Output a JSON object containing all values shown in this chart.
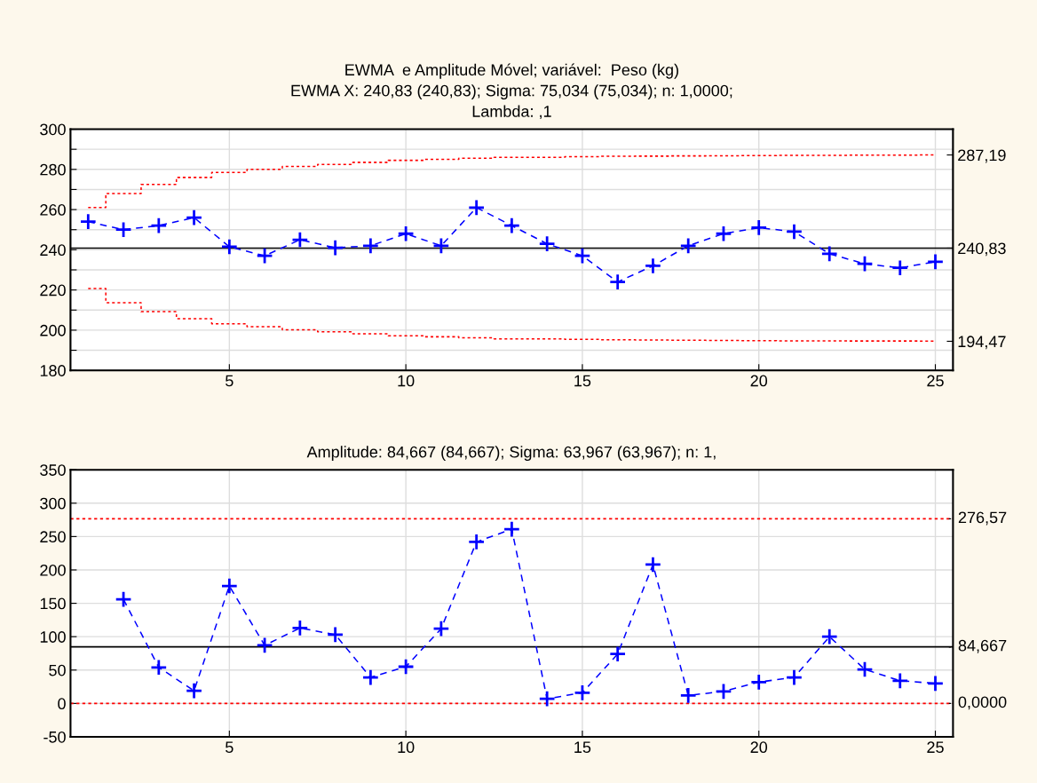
{
  "chart_data": [
    {
      "type": "line",
      "title": "EWMA  e Amplitude Móvel; variável:  Peso (kg)\nEWMA X: 240,83 (240,83); Sigma: 75,034 (75,034); n: 1,0000;\nLambda: ,1",
      "x": [
        1,
        2,
        3,
        4,
        5,
        6,
        7,
        8,
        9,
        10,
        11,
        12,
        13,
        14,
        15,
        16,
        17,
        18,
        19,
        20,
        21,
        22,
        23,
        24,
        25
      ],
      "series": [
        {
          "type": "step",
          "color": "#ff0000",
          "line_style": "dotted",
          "marker": "none",
          "values": [
            261,
            268,
            272.5,
            276,
            278.5,
            280,
            281.5,
            282.5,
            283.5,
            284.5,
            285,
            285.5,
            286,
            286,
            286.3,
            286.5,
            286.6,
            286.7,
            286.8,
            286.9,
            287,
            287,
            287.1,
            287.1,
            287.2
          ]
        },
        {
          "type": "step",
          "color": "#ff0000",
          "line_style": "dotted",
          "marker": "none",
          "values": [
            220.7,
            213.7,
            209.2,
            205.7,
            203.2,
            201.7,
            200.2,
            199.2,
            198.2,
            197.2,
            196.7,
            196.2,
            195.7,
            195.7,
            195.4,
            195.2,
            195.1,
            195,
            194.9,
            194.8,
            194.7,
            194.7,
            194.6,
            194.6,
            194.5
          ]
        },
        {
          "color": "#0000ff",
          "line_style": "dashed",
          "marker": "cross",
          "values": [
            254,
            250,
            252,
            256,
            241.5,
            237,
            245,
            241,
            242,
            248,
            242,
            261,
            252,
            243,
            237,
            224,
            232,
            242,
            248,
            251,
            249,
            238,
            233,
            231,
            234
          ]
        }
      ],
      "ref_lines": [
        {
          "axis": "y",
          "value": 240.83,
          "color": "#000000",
          "line_style": "solid"
        }
      ],
      "xlim": [
        0.5,
        25.5
      ],
      "xticks": [
        5,
        10,
        15,
        20,
        25
      ],
      "ylim": [
        180,
        300
      ],
      "yticks": [
        180,
        {
          "value": 190,
          "label": null
        },
        200,
        {
          "value": 210,
          "label": null
        },
        220,
        {
          "value": 230,
          "label": null
        },
        240,
        {
          "value": 250,
          "label": null
        },
        260,
        {
          "value": 270,
          "label": null
        },
        280,
        {
          "value": 290,
          "label": null
        },
        300
      ],
      "y2lim": [
        180,
        300
      ],
      "y2ticks": [
        {
          "value": 194.47,
          "label": "194,47"
        },
        {
          "value": 240.83,
          "label": "240,83"
        },
        {
          "value": 287.19,
          "label": "287,19"
        }
      ],
      "grid": true
    },
    {
      "type": "line",
      "title": "Amplitude: 84,667 (84,667); Sigma: 63,967 (63,967); n: 1,",
      "series": [
        {
          "color": "#0000ff",
          "line_style": "dashed",
          "marker": "cross",
          "x": [
            2,
            3,
            4,
            5,
            6,
            7,
            8,
            9,
            10,
            11,
            12,
            13,
            14,
            15,
            16,
            17,
            18,
            19,
            20,
            21,
            22,
            23,
            24,
            25
          ],
          "values": [
            156,
            54,
            19,
            176,
            87,
            113,
            103,
            39,
            55,
            112,
            242,
            261,
            7,
            16,
            74,
            208,
            12,
            18,
            32,
            39,
            100,
            51,
            34,
            30
          ]
        }
      ],
      "ref_lines": [
        {
          "axis": "y",
          "value": 276.57,
          "label": "276,57",
          "color": "#ff0000",
          "line_style": "dotted"
        },
        {
          "axis": "y",
          "value": 84.667,
          "label": "84,667",
          "color": "#000000",
          "line_style": "solid"
        },
        {
          "axis": "y",
          "value": 0,
          "label": "0,0000",
          "color": "#ff0000",
          "line_style": "dotted"
        }
      ],
      "xlim": [
        0.5,
        25.5
      ],
      "xticks": [
        5,
        10,
        15,
        20,
        25
      ],
      "ylim": [
        -50,
        350
      ],
      "yticks": [
        -50,
        0,
        50,
        100,
        150,
        200,
        250,
        300,
        350
      ],
      "grid": true
    }
  ]
}
